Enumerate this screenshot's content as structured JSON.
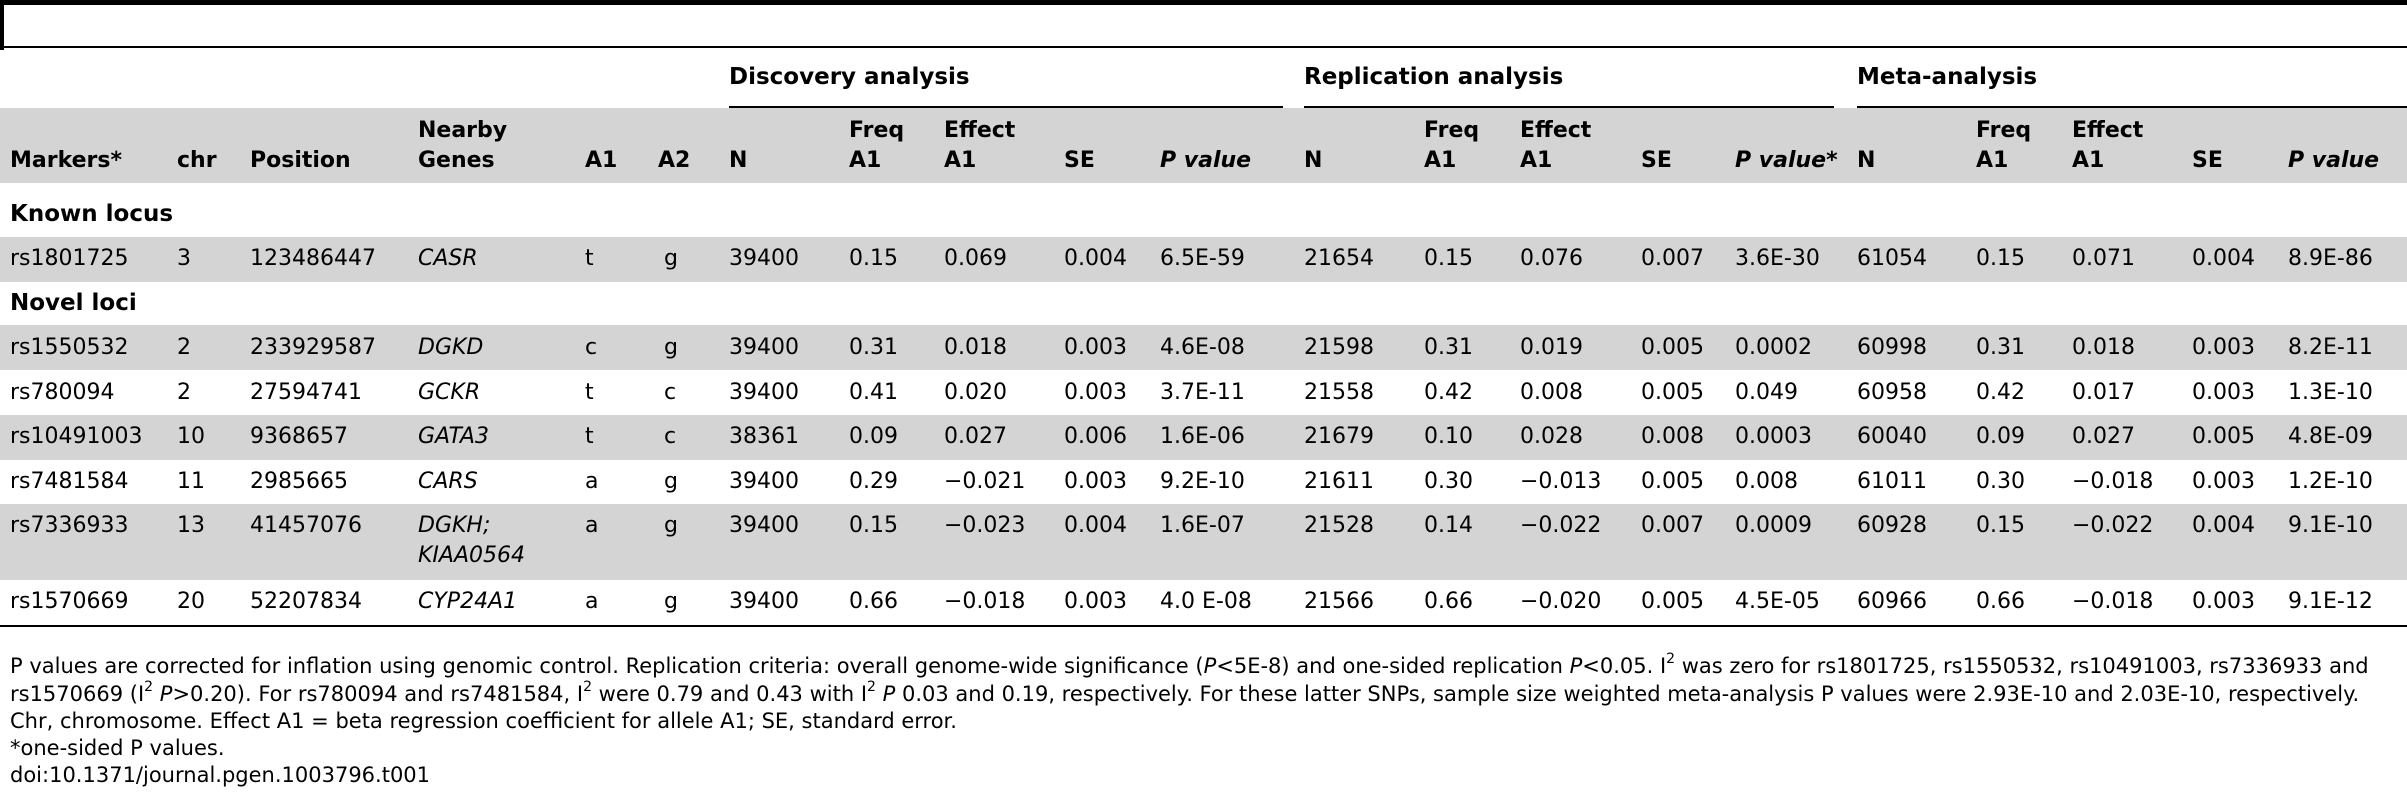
{
  "groups": {
    "discovery": "Discovery analysis",
    "replication": "Replication analysis",
    "meta": "Meta-analysis"
  },
  "headers": {
    "markers": "Markers*",
    "chr": "chr",
    "position": "Position",
    "genes_l1": "Nearby",
    "genes_l2": "Genes",
    "a1": "A1",
    "a2": "A2",
    "n": "N",
    "freq_l1": "Freq",
    "freq_l2": "A1",
    "effect_l1": "Effect",
    "effect_l2": "A1",
    "se": "SE",
    "pvalue": "P value",
    "pvalue_star": "P value*"
  },
  "sections": {
    "known": "Known locus",
    "novel": "Novel loci"
  },
  "rows": [
    {
      "marker": "rs1801725",
      "chr": "3",
      "pos": "123486447",
      "gene": "CASR",
      "gene2": "",
      "a1": "t",
      "a2": "g",
      "d_n": "39400",
      "d_f": "0.15",
      "d_e": "0.069",
      "d_se": "0.004",
      "d_p": "6.5E-59",
      "r_n": "21654",
      "r_f": "0.15",
      "r_e": "0.076",
      "r_se": "0.007",
      "r_p": "3.6E-30",
      "m_n": "61054",
      "m_f": "0.15",
      "m_e": "0.071",
      "m_se": "0.004",
      "m_p": "8.9E-86"
    },
    {
      "marker": "rs1550532",
      "chr": "2",
      "pos": "233929587",
      "gene": "DGKD",
      "gene2": "",
      "a1": "c",
      "a2": "g",
      "d_n": "39400",
      "d_f": "0.31",
      "d_e": "0.018",
      "d_se": "0.003",
      "d_p": "4.6E-08",
      "r_n": "21598",
      "r_f": "0.31",
      "r_e": "0.019",
      "r_se": "0.005",
      "r_p": "0.0002",
      "m_n": "60998",
      "m_f": "0.31",
      "m_e": "0.018",
      "m_se": "0.003",
      "m_p": "8.2E-11"
    },
    {
      "marker": "rs780094",
      "chr": "2",
      "pos": "27594741",
      "gene": "GCKR",
      "gene2": "",
      "a1": "t",
      "a2": "c",
      "d_n": "39400",
      "d_f": "0.41",
      "d_e": "0.020",
      "d_se": "0.003",
      "d_p": "3.7E-11",
      "r_n": "21558",
      "r_f": "0.42",
      "r_e": "0.008",
      "r_se": "0.005",
      "r_p": "0.049",
      "m_n": "60958",
      "m_f": "0.42",
      "m_e": "0.017",
      "m_se": "0.003",
      "m_p": "1.3E-10"
    },
    {
      "marker": "rs10491003",
      "chr": "10",
      "pos": "9368657",
      "gene": "GATA3",
      "gene2": "",
      "a1": "t",
      "a2": "c",
      "d_n": "38361",
      "d_f": "0.09",
      "d_e": "0.027",
      "d_se": "0.006",
      "d_p": "1.6E-06",
      "r_n": "21679",
      "r_f": "0.10",
      "r_e": "0.028",
      "r_se": "0.008",
      "r_p": "0.0003",
      "m_n": "60040",
      "m_f": "0.09",
      "m_e": "0.027",
      "m_se": "0.005",
      "m_p": "4.8E-09"
    },
    {
      "marker": "rs7481584",
      "chr": "11",
      "pos": "2985665",
      "gene": "CARS",
      "gene2": "",
      "a1": "a",
      "a2": "g",
      "d_n": "39400",
      "d_f": "0.29",
      "d_e": "−0.021",
      "d_se": "0.003",
      "d_p": "9.2E-10",
      "r_n": "21611",
      "r_f": "0.30",
      "r_e": "−0.013",
      "r_se": "0.005",
      "r_p": "0.008",
      "m_n": "61011",
      "m_f": "0.30",
      "m_e": "−0.018",
      "m_se": "0.003",
      "m_p": "1.2E-10"
    },
    {
      "marker": "rs7336933",
      "chr": "13",
      "pos": "41457076",
      "gene": "DGKH;",
      "gene2": "KIAA0564",
      "a1": "a",
      "a2": "g",
      "d_n": "39400",
      "d_f": "0.15",
      "d_e": "−0.023",
      "d_se": "0.004",
      "d_p": "1.6E-07",
      "r_n": "21528",
      "r_f": "0.14",
      "r_e": "−0.022",
      "r_se": "0.007",
      "r_p": "0.0009",
      "m_n": "60928",
      "m_f": "0.15",
      "m_e": "−0.022",
      "m_se": "0.004",
      "m_p": "9.1E-10"
    },
    {
      "marker": "rs1570669",
      "chr": "20",
      "pos": "52207834",
      "gene": "CYP24A1",
      "gene2": "",
      "a1": "a",
      "a2": "g",
      "d_n": "39400",
      "d_f": "0.66",
      "d_e": "−0.018",
      "d_se": "0.003",
      "d_p": "4.0 E-08",
      "r_n": "21566",
      "r_f": "0.66",
      "r_e": "−0.020",
      "r_se": "0.005",
      "r_p": "4.5E-05",
      "m_n": "60966",
      "m_f": "0.66",
      "m_e": "−0.018",
      "m_se": "0.003",
      "m_p": "9.1E-12"
    }
  ],
  "footnote": {
    "l1a": "P values are corrected for inflation using genomic control. Replication criteria: overall genome-wide significance (",
    "l1_p1": "P",
    "l1b": "<5E-8) and one-sided replication ",
    "l1_p2": "P",
    "l1c": "<0.05. I",
    "l1_sup": "2",
    "l1d": " was zero for rs1801725, rs1550532, rs10491003, rs7336933 and",
    "l2a": "rs1570669 (I",
    "l2_sup1": "2",
    "l2_p": " P",
    "l2b": ">0.20). For rs780094 and rs7481584, I",
    "l2_sup2": "2",
    "l2c": " were 0.79 and 0.43 with I",
    "l2_sup3": "2",
    "l2_p2": " P",
    "l2d": " 0.03 and 0.19, respectively. For these latter SNPs, sample size weighted meta-analysis P values were 2.93E-10 and 2.03E-10, respectively.",
    "l3": "Chr, chromosome. Effect A1 = beta regression coefficient for allele A1; SE, standard error.",
    "l4": "*one-sided P values.",
    "l5": "doi:10.1371/journal.pgen.1003796.t001"
  }
}
